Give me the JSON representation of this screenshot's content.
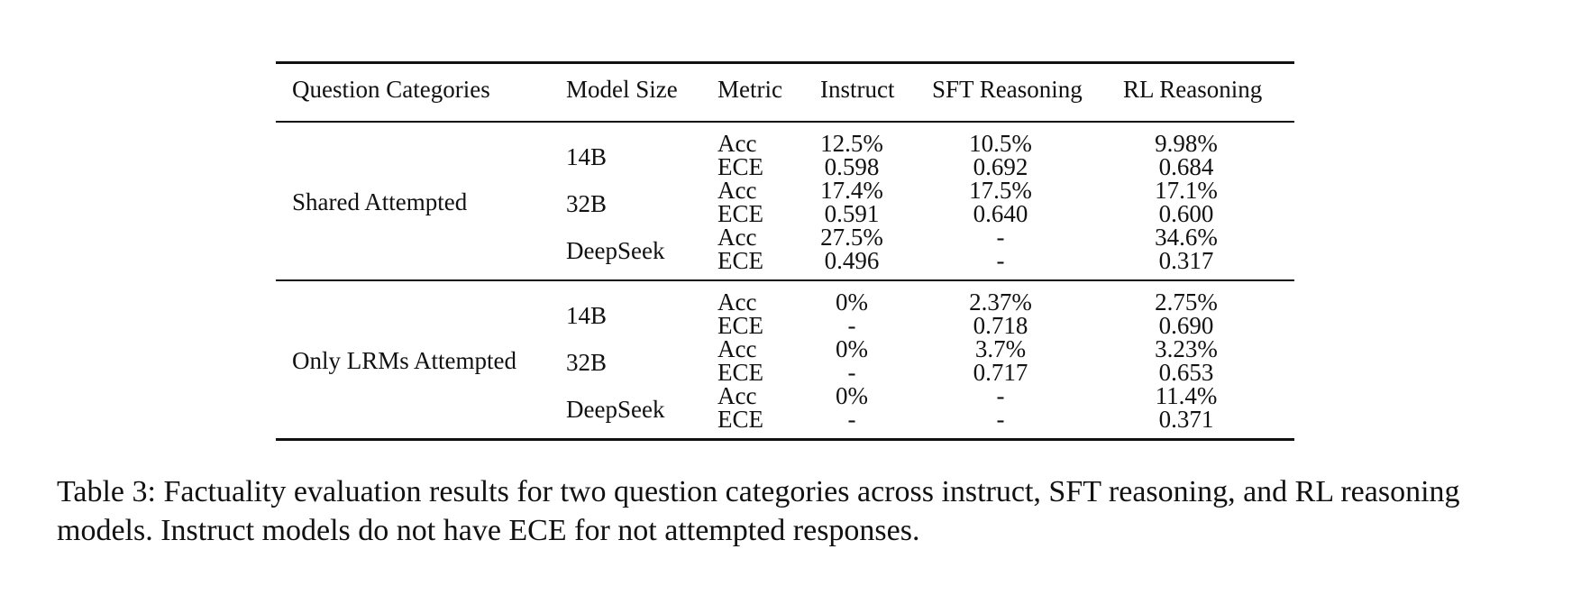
{
  "table": {
    "headers": [
      "Question Categories",
      "Model Size",
      "Metric",
      "Instruct",
      "SFT Reasoning",
      "RL Reasoning"
    ],
    "groups": [
      {
        "category": "Shared Attempted",
        "models": [
          {
            "size": "14B",
            "rows": [
              {
                "metric": "Acc",
                "instruct": "12.5%",
                "sft": "10.5%",
                "rl": "9.98%"
              },
              {
                "metric": "ECE",
                "instruct": "0.598",
                "sft": "0.692",
                "rl": "0.684"
              }
            ]
          },
          {
            "size": "32B",
            "rows": [
              {
                "metric": "Acc",
                "instruct": "17.4%",
                "sft": "17.5%",
                "rl": "17.1%"
              },
              {
                "metric": "ECE",
                "instruct": "0.591",
                "sft": "0.640",
                "rl": "0.600"
              }
            ]
          },
          {
            "size": "DeepSeek",
            "rows": [
              {
                "metric": "Acc",
                "instruct": "27.5%",
                "sft": "-",
                "rl": "34.6%"
              },
              {
                "metric": "ECE",
                "instruct": "0.496",
                "sft": "-",
                "rl": "0.317"
              }
            ]
          }
        ]
      },
      {
        "category": "Only LRMs Attempted",
        "models": [
          {
            "size": "14B",
            "rows": [
              {
                "metric": "Acc",
                "instruct": "0%",
                "sft": "2.37%",
                "rl": "2.75%"
              },
              {
                "metric": "ECE",
                "instruct": "-",
                "sft": "0.718",
                "rl": "0.690"
              }
            ]
          },
          {
            "size": "32B",
            "rows": [
              {
                "metric": "Acc",
                "instruct": "0%",
                "sft": "3.7%",
                "rl": "3.23%"
              },
              {
                "metric": "ECE",
                "instruct": "-",
                "sft": "0.717",
                "rl": "0.653"
              }
            ]
          },
          {
            "size": "DeepSeek",
            "rows": [
              {
                "metric": "Acc",
                "instruct": "0%",
                "sft": "-",
                "rl": "11.4%"
              },
              {
                "metric": "ECE",
                "instruct": "-",
                "sft": "-",
                "rl": "0.371"
              }
            ]
          }
        ]
      }
    ]
  },
  "caption": "Table 3: Factuality evaluation results for two question categories across instruct, SFT reasoning, and RL reasoning models. Instruct models do not have ECE for not attempted responses."
}
